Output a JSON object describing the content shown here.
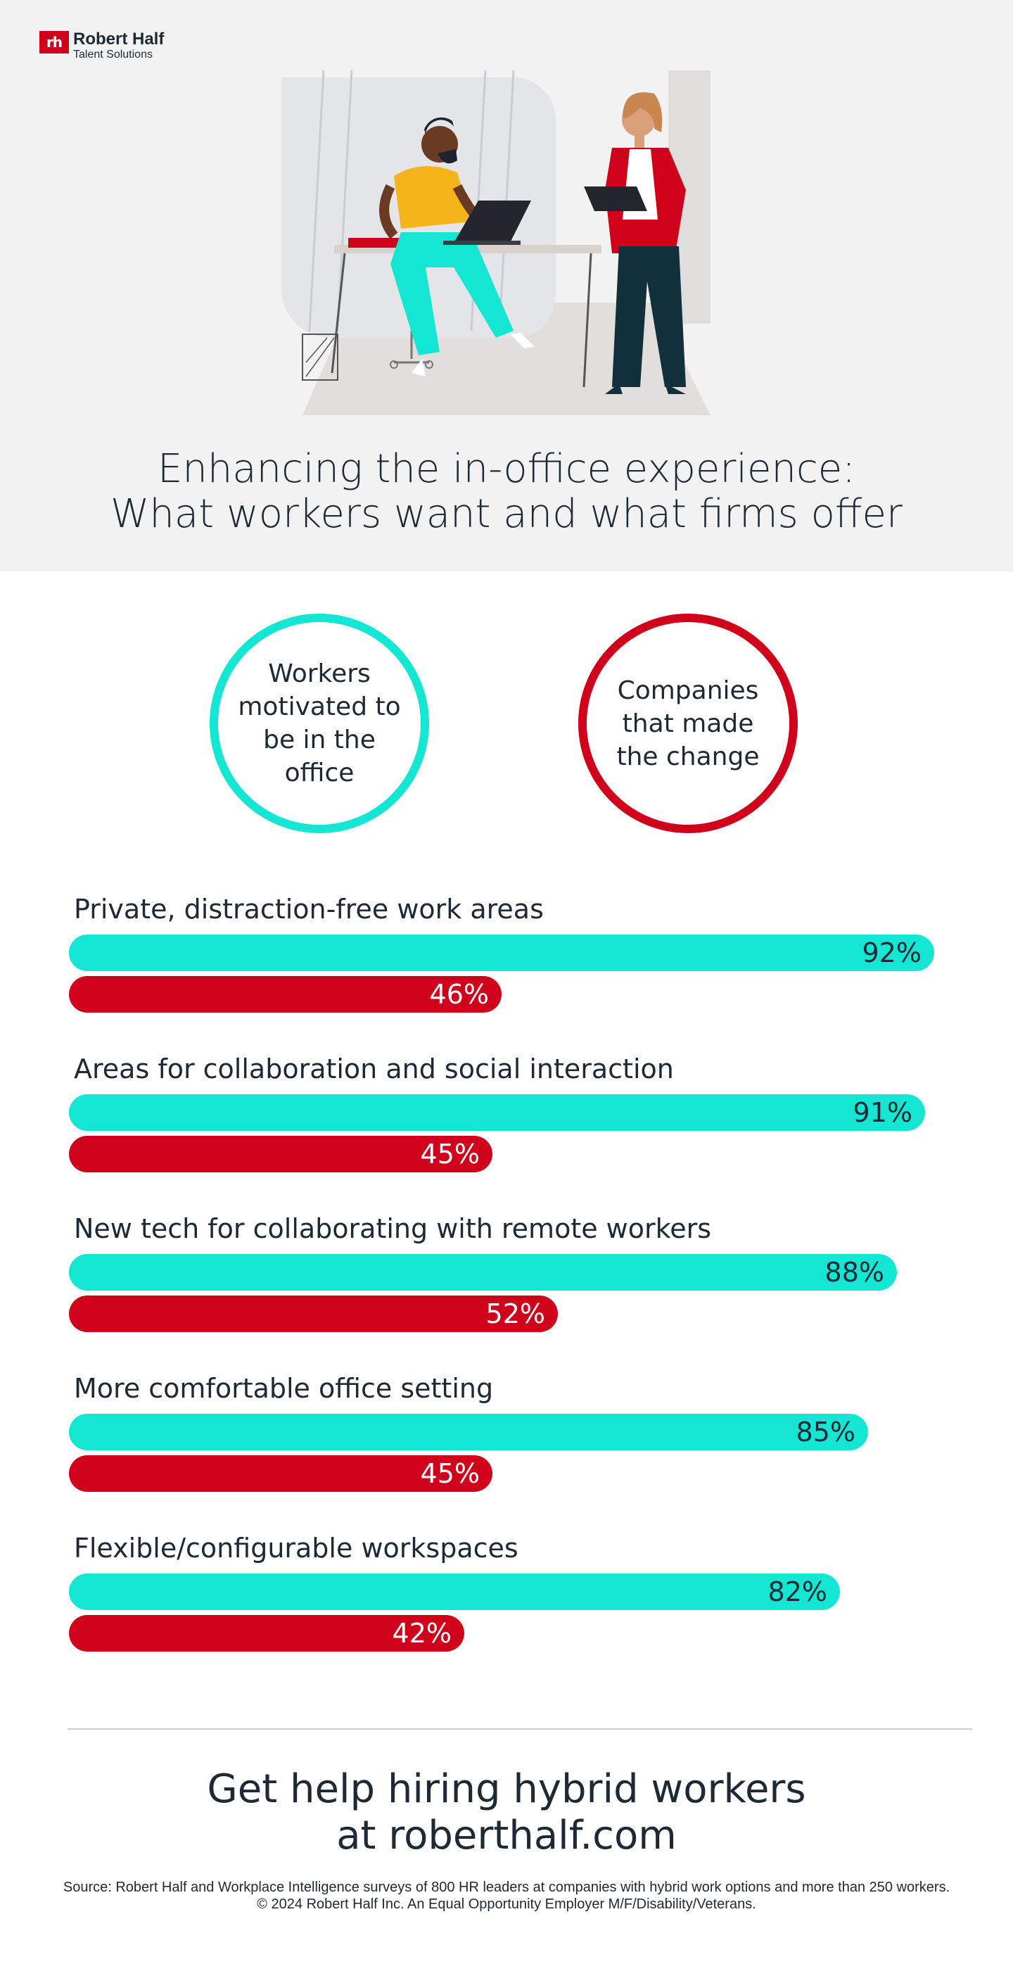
{
  "brand": {
    "logo_mark": "rh",
    "name": "Robert Half",
    "tagline": "Talent Solutions"
  },
  "hero": {
    "title_line1": "Enhancing the in-office experience:",
    "title_line2": "What workers want and what firms offer",
    "illustration": "office-workers-illustration"
  },
  "legend": {
    "workers": "Workers motivated to be in the office",
    "companies": "Companies that made the change"
  },
  "colors": {
    "workers": "#14e6d4",
    "companies": "#d0021b",
    "text": "#1d2935",
    "hero_bg": "#f2f2f2"
  },
  "chart_data": {
    "type": "bar",
    "orientation": "horizontal",
    "title": "Enhancing the in-office experience: What workers want and what firms offer",
    "xlabel": "",
    "ylabel": "",
    "xlim": [
      0,
      100
    ],
    "grid": false,
    "categories": [
      "Private, distraction-free work areas",
      "Areas for collaboration and social interaction",
      "New tech for collaborating with remote workers",
      "More comfortable office setting",
      "Flexible/configurable workspaces"
    ],
    "series": [
      {
        "name": "Workers motivated to be in the office",
        "values": [
          92,
          91,
          88,
          85,
          82
        ],
        "labels": [
          "92%",
          "91%",
          "88%",
          "85%",
          "82%"
        ]
      },
      {
        "name": "Companies that made the change",
        "values": [
          46,
          45,
          52,
          45,
          42
        ],
        "labels": [
          "46%",
          "45%",
          "52%",
          "45%",
          "42%"
        ]
      }
    ]
  },
  "cta": {
    "line1": "Get help hiring hybrid workers",
    "line2": "at roberthalf.com"
  },
  "footer": {
    "source": "Source: Robert Half and Workplace Intelligence surveys of 800 HR leaders at companies with hybrid work options and more than 250 workers.",
    "copyright": "© 2024 Robert Half Inc. An Equal Opportunity Employer M/F/Disability/Veterans."
  }
}
